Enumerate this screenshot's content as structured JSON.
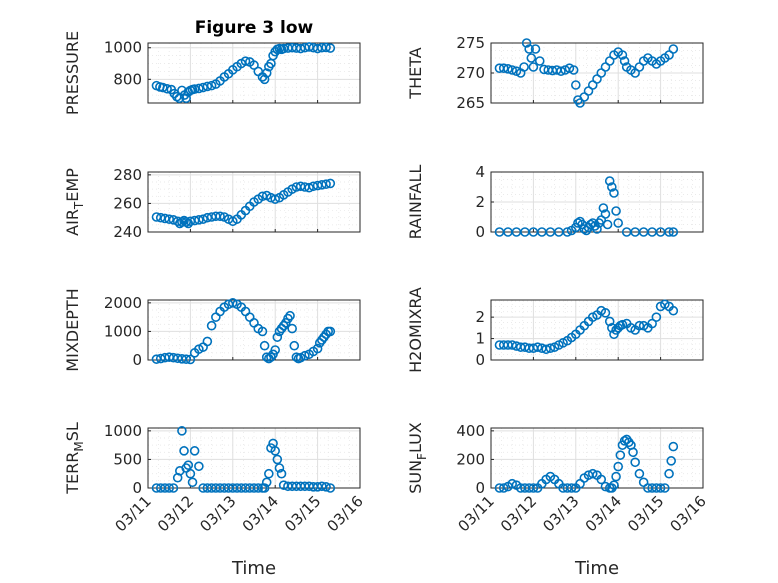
{
  "figure": {
    "title": "Figure 3 low",
    "xlabel": "Time",
    "x_ticks": [
      "03/11",
      "03/12",
      "03/13",
      "03/14",
      "03/15",
      "03/16"
    ],
    "marker_color": "#0072bd"
  },
  "chart_data": [
    {
      "type": "scatter",
      "ylabel": "PRESSURE",
      "xlim": [
        "03/11",
        "03/16"
      ],
      "ylim": [
        650,
        1030
      ],
      "yticks": [
        800,
        1000
      ],
      "ytick_labels": [
        "800",
        "1000"
      ],
      "grid": true,
      "x": [
        11.2,
        11.28,
        11.35,
        11.45,
        11.55,
        11.62,
        11.68,
        11.74,
        11.8,
        11.86,
        11.9,
        11.95,
        12.0,
        12.05,
        12.1,
        12.2,
        12.3,
        12.4,
        12.5,
        12.6,
        12.7,
        12.8,
        12.9,
        13.0,
        13.1,
        13.2,
        13.3,
        13.4,
        13.5,
        13.6,
        13.7,
        13.75,
        13.8,
        13.85,
        13.9,
        13.95,
        14.0,
        14.05,
        14.1,
        14.15,
        14.2,
        14.3,
        14.4,
        14.5,
        14.6,
        14.7,
        14.8,
        14.9,
        15.0,
        15.1,
        15.2,
        15.3
      ],
      "y": [
        760,
        752,
        748,
        740,
        735,
        710,
        690,
        680,
        730,
        700,
        680,
        720,
        730,
        735,
        738,
        742,
        748,
        755,
        760,
        770,
        790,
        815,
        835,
        860,
        880,
        900,
        915,
        910,
        890,
        850,
        815,
        800,
        840,
        880,
        900,
        950,
        975,
        990,
        995,
        990,
        995,
        998,
        1000,
        998,
        995,
        1000,
        1005,
        1000,
        995,
        1000,
        1002,
        998
      ]
    },
    {
      "type": "scatter",
      "ylabel": "THETA",
      "xlim": [
        "03/11",
        "03/16"
      ],
      "ylim": [
        265,
        275
      ],
      "yticks": [
        265,
        270,
        275
      ],
      "ytick_labels": [
        "265",
        "270",
        "275"
      ],
      "grid": true,
      "x": [
        11.2,
        11.3,
        11.4,
        11.5,
        11.6,
        11.7,
        11.78,
        11.84,
        11.9,
        11.95,
        12.0,
        12.05,
        12.15,
        12.25,
        12.35,
        12.45,
        12.55,
        12.65,
        12.75,
        12.85,
        12.95,
        13.0,
        13.05,
        13.1,
        13.2,
        13.3,
        13.4,
        13.5,
        13.6,
        13.7,
        13.8,
        13.9,
        14.0,
        14.1,
        14.15,
        14.2,
        14.3,
        14.4,
        14.5,
        14.6,
        14.7,
        14.8,
        14.9,
        15.0,
        15.1,
        15.2,
        15.3
      ],
      "y": [
        270.8,
        270.8,
        270.7,
        270.5,
        270.3,
        270.0,
        271.0,
        275.0,
        274.0,
        272.5,
        271.0,
        274.0,
        272.0,
        270.6,
        270.5,
        270.4,
        270.5,
        270.3,
        270.5,
        270.8,
        270.5,
        268.0,
        265.5,
        265.0,
        266.0,
        267.0,
        268.0,
        269.0,
        270.0,
        271.0,
        272.0,
        273.0,
        273.5,
        273.0,
        272.0,
        271.0,
        270.5,
        270.0,
        271.0,
        272.0,
        272.5,
        272.0,
        271.5,
        272.0,
        272.5,
        273.0,
        274.0
      ]
    },
    {
      "type": "scatter",
      "ylabel": "AIR_TEMP",
      "ylabel_main": "AIR",
      "ylabel_sub": "T",
      "ylabel_rest": "EMP",
      "xlim": [
        "03/11",
        "03/16"
      ],
      "ylim": [
        240,
        282
      ],
      "yticks": [
        240,
        260,
        280
      ],
      "ytick_labels": [
        "240",
        "260",
        "280"
      ],
      "grid": true,
      "x": [
        11.2,
        11.3,
        11.4,
        11.5,
        11.6,
        11.7,
        11.75,
        11.8,
        11.85,
        11.9,
        11.95,
        12.0,
        12.1,
        12.2,
        12.3,
        12.4,
        12.5,
        12.6,
        12.7,
        12.8,
        12.9,
        13.0,
        13.1,
        13.2,
        13.3,
        13.4,
        13.5,
        13.6,
        13.7,
        13.8,
        13.9,
        14.0,
        14.1,
        14.2,
        14.3,
        14.4,
        14.5,
        14.6,
        14.7,
        14.8,
        14.9,
        15.0,
        15.1,
        15.2,
        15.3
      ],
      "y": [
        250.5,
        250,
        249.5,
        249,
        248.5,
        247.5,
        246,
        247,
        248,
        247,
        246,
        247.5,
        248,
        248.5,
        249,
        250,
        250.5,
        251,
        251,
        250.5,
        249,
        247.5,
        249,
        252,
        255,
        258,
        261,
        263,
        265,
        265.5,
        264,
        263,
        264,
        266,
        268,
        270,
        271.5,
        272,
        271.5,
        271,
        272,
        272.5,
        273,
        273.5,
        274
      ]
    },
    {
      "type": "scatter",
      "ylabel": "RAINFALL",
      "xlim": [
        "03/11",
        "03/16"
      ],
      "ylim": [
        0,
        4
      ],
      "yticks": [
        0,
        2,
        4
      ],
      "ytick_labels": [
        "0",
        "2",
        "4"
      ],
      "grid": true,
      "x": [
        11.2,
        11.4,
        11.6,
        11.8,
        12.0,
        12.2,
        12.4,
        12.6,
        12.8,
        12.9,
        13.0,
        13.05,
        13.1,
        13.15,
        13.2,
        13.25,
        13.3,
        13.35,
        13.4,
        13.45,
        13.5,
        13.55,
        13.6,
        13.65,
        13.7,
        13.75,
        13.8,
        13.85,
        13.9,
        13.95,
        14.0,
        14.2,
        14.4,
        14.6,
        14.8,
        15.0,
        15.2,
        15.3
      ],
      "y": [
        0,
        0,
        0,
        0,
        0,
        0,
        0,
        0,
        0,
        0.1,
        0.3,
        0.6,
        0.7,
        0.5,
        0.2,
        0.1,
        0.3,
        0.5,
        0.6,
        0.4,
        0.2,
        0.6,
        0.8,
        1.6,
        1.2,
        0.5,
        3.4,
        3.0,
        2.6,
        1.4,
        0.6,
        0,
        0,
        0,
        0,
        0,
        0,
        0
      ]
    },
    {
      "type": "scatter",
      "ylabel": "MIXDEPTH",
      "xlim": [
        "03/11",
        "03/16"
      ],
      "ylim": [
        0,
        2100
      ],
      "yticks": [
        0,
        1000,
        2000
      ],
      "ytick_labels": [
        "0",
        "1000",
        "2000"
      ],
      "grid": true,
      "x": [
        11.2,
        11.3,
        11.4,
        11.5,
        11.6,
        11.7,
        11.8,
        11.9,
        12.0,
        12.1,
        12.2,
        12.3,
        12.4,
        12.5,
        12.6,
        12.7,
        12.8,
        12.9,
        13.0,
        13.1,
        13.2,
        13.3,
        13.4,
        13.5,
        13.6,
        13.7,
        13.75,
        13.8,
        13.85,
        13.9,
        13.95,
        14.0,
        14.05,
        14.1,
        14.15,
        14.2,
        14.25,
        14.3,
        14.35,
        14.4,
        14.45,
        14.5,
        14.55,
        14.6,
        14.7,
        14.8,
        14.9,
        15.0,
        15.05,
        15.1,
        15.15,
        15.2,
        15.25,
        15.3
      ],
      "y": [
        30,
        50,
        80,
        100,
        80,
        60,
        40,
        30,
        20,
        250,
        380,
        450,
        650,
        1200,
        1500,
        1700,
        1850,
        1950,
        2000,
        1950,
        1850,
        1700,
        1500,
        1300,
        1100,
        1000,
        500,
        100,
        50,
        100,
        200,
        350,
        800,
        1000,
        1100,
        1200,
        1300,
        1450,
        1550,
        1100,
        500,
        100,
        50,
        80,
        150,
        200,
        300,
        400,
        600,
        700,
        800,
        900,
        1000,
        1000
      ]
    },
    {
      "type": "scatter",
      "ylabel": "H2OMIXRA",
      "xlim": [
        "03/11",
        "03/16"
      ],
      "ylim": [
        0,
        2.8
      ],
      "yticks": [
        0,
        1,
        2
      ],
      "ytick_labels": [
        "0",
        "1",
        "2"
      ],
      "grid": true,
      "x": [
        11.2,
        11.3,
        11.4,
        11.5,
        11.6,
        11.7,
        11.8,
        11.9,
        12.0,
        12.1,
        12.2,
        12.3,
        12.4,
        12.5,
        12.6,
        12.7,
        12.8,
        12.9,
        13.0,
        13.1,
        13.2,
        13.3,
        13.4,
        13.5,
        13.6,
        13.7,
        13.8,
        13.85,
        13.9,
        13.95,
        14.0,
        14.05,
        14.1,
        14.2,
        14.3,
        14.4,
        14.5,
        14.6,
        14.7,
        14.8,
        14.9,
        15.0,
        15.1,
        15.2,
        15.3
      ],
      "y": [
        0.7,
        0.7,
        0.7,
        0.7,
        0.65,
        0.6,
        0.6,
        0.55,
        0.55,
        0.6,
        0.55,
        0.5,
        0.55,
        0.6,
        0.7,
        0.8,
        0.9,
        1.05,
        1.2,
        1.4,
        1.6,
        1.8,
        2.0,
        2.1,
        2.3,
        2.2,
        1.8,
        1.5,
        1.2,
        1.4,
        1.5,
        1.6,
        1.65,
        1.7,
        1.5,
        1.4,
        1.6,
        1.6,
        1.5,
        1.7,
        2.0,
        2.5,
        2.6,
        2.5,
        2.3
      ]
    },
    {
      "type": "scatter",
      "ylabel": "TERR_MSL",
      "ylabel_main": "TERR",
      "ylabel_sub": "M",
      "ylabel_rest": "SL",
      "xlim": [
        "03/11",
        "03/16"
      ],
      "ylim": [
        0,
        1050
      ],
      "yticks": [
        0,
        500,
        1000
      ],
      "ytick_labels": [
        "0",
        "500",
        "1000"
      ],
      "grid": true,
      "x": [
        11.2,
        11.3,
        11.4,
        11.5,
        11.6,
        11.7,
        11.75,
        11.8,
        11.85,
        11.9,
        11.95,
        12.0,
        12.05,
        12.1,
        12.2,
        12.3,
        12.4,
        12.5,
        12.6,
        12.7,
        12.8,
        12.9,
        13.0,
        13.1,
        13.2,
        13.3,
        13.4,
        13.5,
        13.6,
        13.7,
        13.75,
        13.8,
        13.85,
        13.9,
        13.95,
        14.0,
        14.05,
        14.1,
        14.15,
        14.2,
        14.3,
        14.4,
        14.5,
        14.6,
        14.7,
        14.8,
        14.9,
        15.0,
        15.1,
        15.2,
        15.3
      ],
      "y": [
        0,
        0,
        0,
        0,
        0,
        180,
        300,
        1000,
        650,
        350,
        400,
        250,
        100,
        650,
        380,
        0,
        0,
        0,
        0,
        0,
        0,
        0,
        0,
        0,
        0,
        0,
        0,
        0,
        0,
        0,
        0,
        100,
        250,
        700,
        780,
        650,
        500,
        350,
        250,
        50,
        30,
        30,
        30,
        30,
        30,
        30,
        20,
        20,
        30,
        20,
        0
      ]
    },
    {
      "type": "scatter",
      "ylabel": "SUN_FLUX",
      "ylabel_main": "SUN",
      "ylabel_sub": "F",
      "ylabel_rest": "LUX",
      "xlim": [
        "03/11",
        "03/16"
      ],
      "ylim": [
        0,
        420
      ],
      "yticks": [
        0,
        200,
        400
      ],
      "ytick_labels": [
        "0",
        "200",
        "400"
      ],
      "grid": true,
      "x": [
        11.2,
        11.3,
        11.4,
        11.5,
        11.6,
        11.7,
        11.8,
        11.9,
        12.0,
        12.1,
        12.2,
        12.3,
        12.4,
        12.5,
        12.6,
        12.7,
        12.8,
        12.9,
        13.0,
        13.1,
        13.2,
        13.3,
        13.4,
        13.5,
        13.6,
        13.7,
        13.8,
        13.85,
        13.9,
        13.95,
        14.0,
        14.05,
        14.1,
        14.15,
        14.2,
        14.25,
        14.3,
        14.35,
        14.4,
        14.5,
        14.6,
        14.7,
        14.8,
        14.9,
        15.0,
        15.1,
        15.2,
        15.25,
        15.3
      ],
      "y": [
        0,
        0,
        10,
        30,
        20,
        0,
        0,
        0,
        0,
        0,
        30,
        60,
        80,
        60,
        30,
        0,
        0,
        0,
        0,
        30,
        70,
        90,
        100,
        90,
        60,
        10,
        0,
        0,
        20,
        80,
        150,
        230,
        300,
        330,
        340,
        320,
        300,
        250,
        180,
        100,
        40,
        0,
        0,
        0,
        0,
        0,
        100,
        190,
        290
      ]
    }
  ]
}
